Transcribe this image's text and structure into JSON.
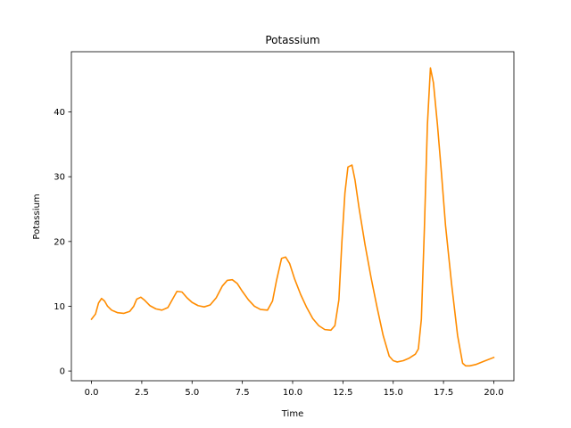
{
  "chart_data": {
    "type": "line",
    "title": "Potassium",
    "xlabel": "Time",
    "ylabel": "Potassium",
    "xlim": [
      -1,
      21
    ],
    "ylim": [
      -1.5,
      49.3
    ],
    "xticks": [
      0,
      2.5,
      5,
      7.5,
      10,
      12.5,
      15,
      17.5,
      20
    ],
    "xtick_labels": [
      "0.0",
      "2.5",
      "5.0",
      "7.5",
      "10.0",
      "12.5",
      "15.0",
      "17.5",
      "20.0"
    ],
    "yticks": [
      0,
      10,
      20,
      30,
      40
    ],
    "ytick_labels": [
      "0",
      "10",
      "20",
      "30",
      "40"
    ],
    "grid": false,
    "series": [
      {
        "color": "#ff8c00",
        "x": [
          0,
          0.2,
          0.35,
          0.5,
          0.65,
          0.8,
          1.0,
          1.3,
          1.6,
          1.9,
          2.1,
          2.25,
          2.45,
          2.65,
          2.9,
          3.2,
          3.5,
          3.8,
          4.05,
          4.25,
          4.5,
          4.75,
          5.0,
          5.3,
          5.6,
          5.9,
          6.2,
          6.5,
          6.75,
          7.0,
          7.25,
          7.5,
          7.8,
          8.1,
          8.4,
          8.75,
          9.0,
          9.2,
          9.45,
          9.65,
          9.85,
          10.1,
          10.4,
          10.7,
          11.0,
          11.3,
          11.6,
          11.9,
          12.1,
          12.3,
          12.45,
          12.6,
          12.75,
          12.95,
          13.1,
          13.3,
          13.6,
          13.9,
          14.2,
          14.5,
          14.8,
          15.0,
          15.2,
          15.5,
          15.8,
          16.1,
          16.25,
          16.4,
          16.55,
          16.7,
          16.85,
          17.0,
          17.2,
          17.4,
          17.6,
          17.9,
          18.2,
          18.45,
          18.6,
          18.8,
          19.1,
          19.5,
          20.0
        ],
        "y": [
          8.0,
          8.8,
          10.5,
          11.2,
          10.8,
          10.0,
          9.4,
          9.0,
          8.9,
          9.2,
          10.0,
          11.1,
          11.4,
          10.9,
          10.1,
          9.6,
          9.4,
          9.8,
          11.2,
          12.3,
          12.2,
          11.3,
          10.6,
          10.1,
          9.9,
          10.2,
          11.3,
          13.1,
          14.0,
          14.1,
          13.5,
          12.3,
          11.0,
          10.0,
          9.5,
          9.4,
          10.8,
          14.0,
          17.4,
          17.6,
          16.6,
          14.2,
          11.8,
          9.8,
          8.1,
          7.0,
          6.4,
          6.3,
          7.0,
          11.0,
          20.0,
          27.5,
          31.5,
          31.8,
          29.5,
          25.2,
          19.5,
          14.4,
          9.8,
          5.5,
          2.3,
          1.6,
          1.4,
          1.6,
          2.0,
          2.6,
          3.4,
          8.0,
          22.0,
          38.0,
          46.8,
          44.5,
          38.0,
          30.5,
          22.5,
          13.5,
          5.5,
          1.2,
          0.8,
          0.8,
          1.0,
          1.5,
          2.1
        ]
      }
    ]
  }
}
